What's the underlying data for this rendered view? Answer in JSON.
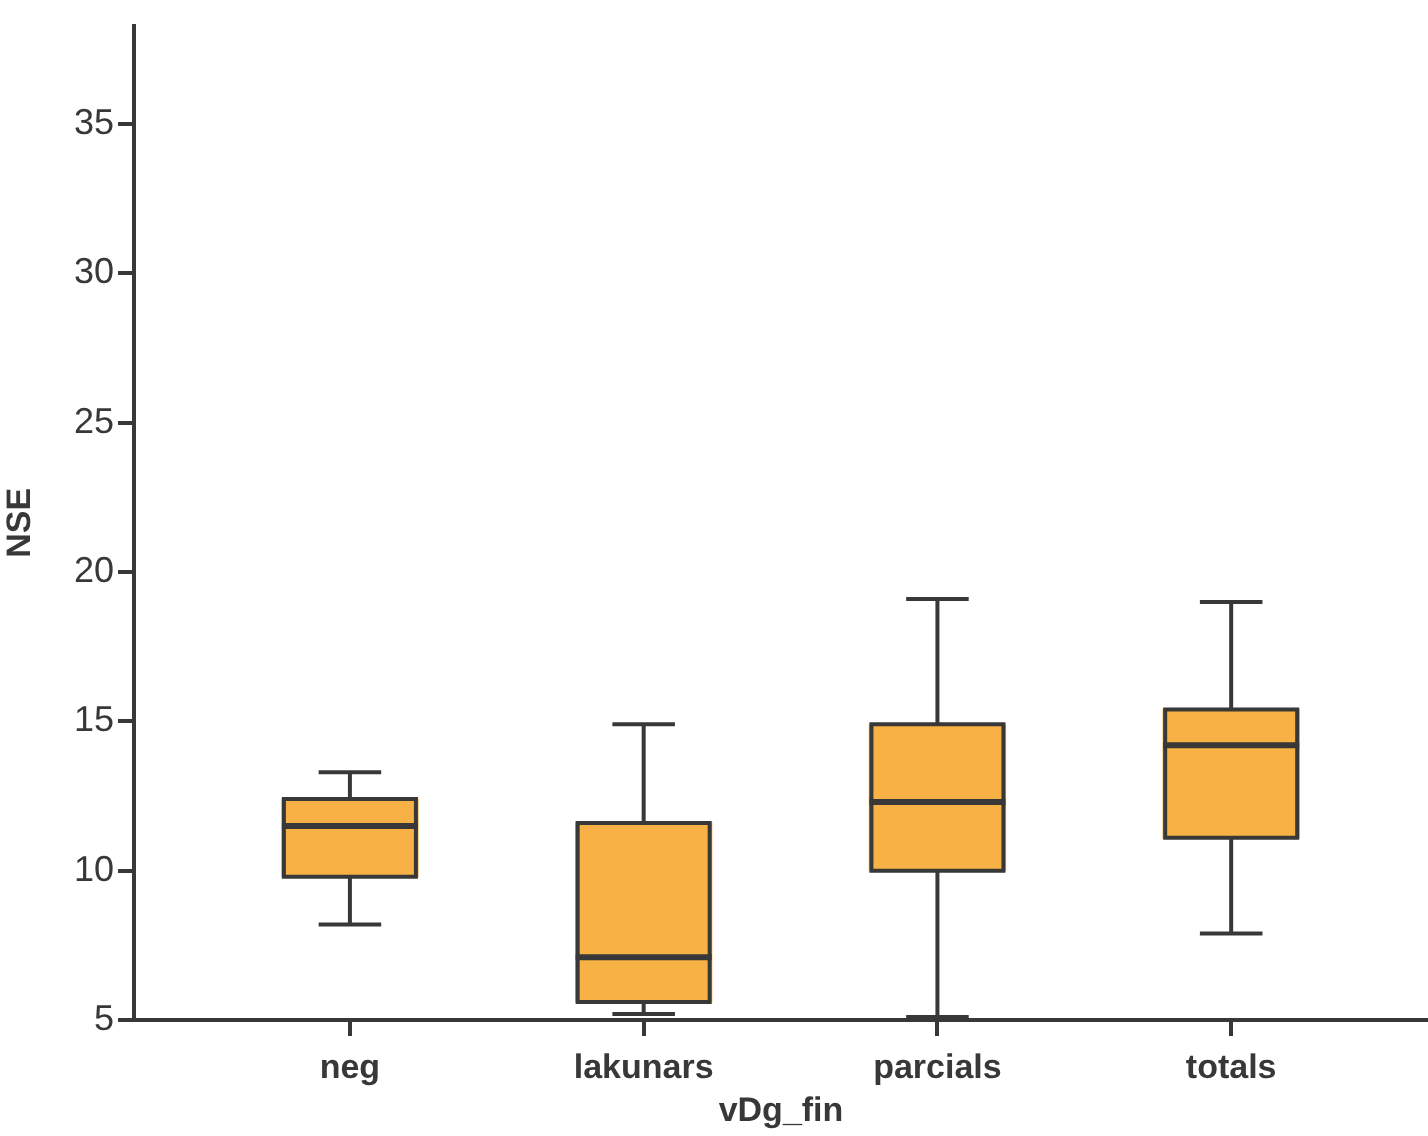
{
  "chart_data": {
    "type": "box",
    "xlabel": "vDg_fin",
    "ylabel": "NSE",
    "categories": [
      "neg",
      "lakunars",
      "parcials",
      "totals"
    ],
    "color": "#f8b144",
    "boxes": [
      {
        "low": 8.2,
        "q1": 9.8,
        "median": 11.5,
        "q3": 12.4,
        "high": 13.3
      },
      {
        "low": 5.2,
        "q1": 5.6,
        "median": 7.1,
        "q3": 11.6,
        "high": 14.9
      },
      {
        "low": 5.1,
        "q1": 10.0,
        "median": 12.3,
        "q3": 14.9,
        "high": 19.1
      },
      {
        "low": 7.9,
        "q1": 11.1,
        "median": 14.2,
        "q3": 15.4,
        "high": 19.0
      }
    ],
    "ylim": [
      5,
      38.3
    ],
    "yticks": [
      5,
      10,
      15,
      20,
      25,
      30,
      35
    ]
  }
}
